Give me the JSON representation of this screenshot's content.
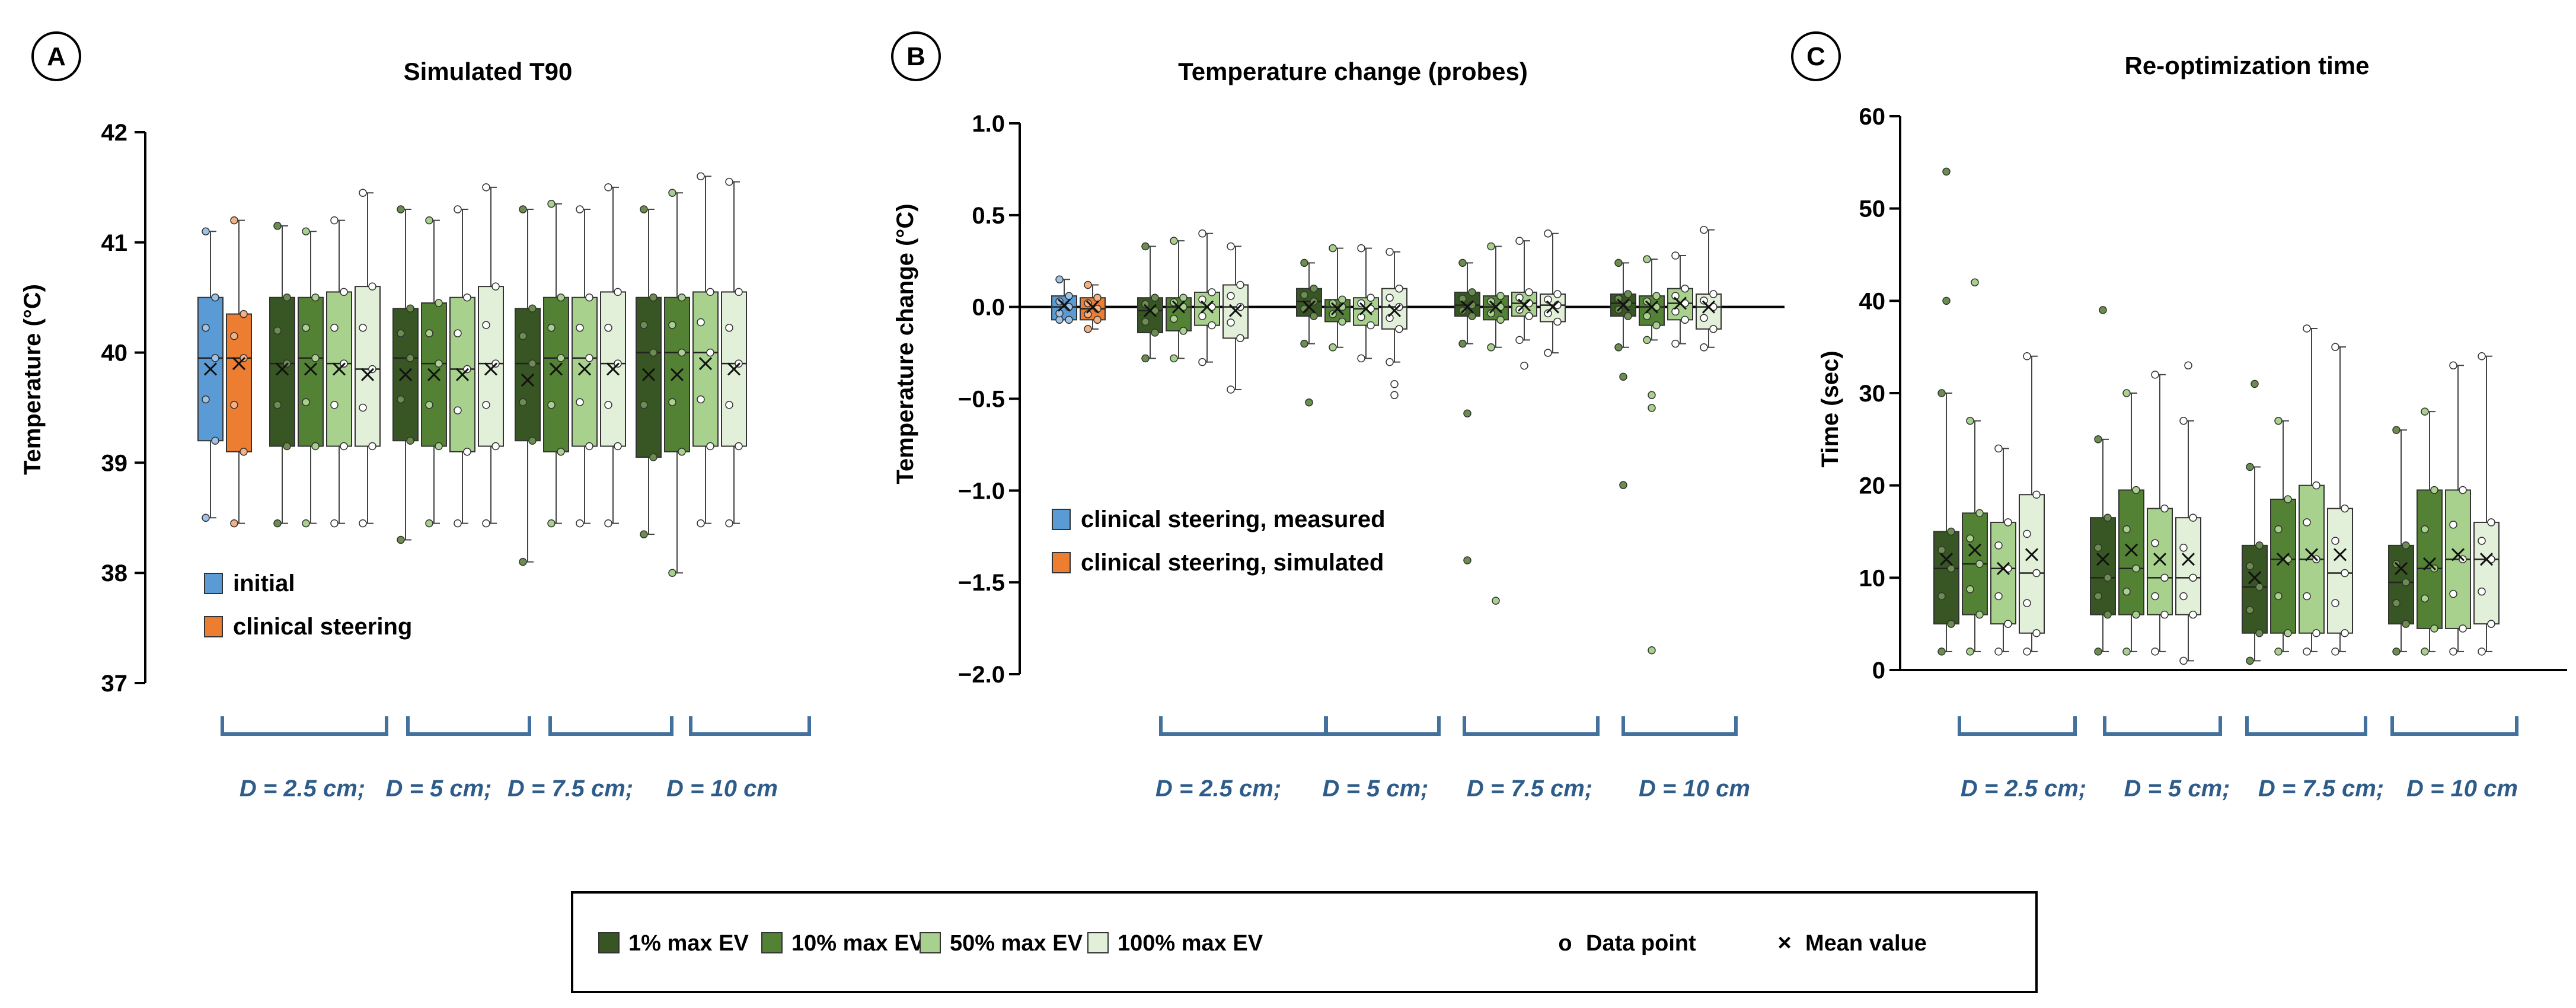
{
  "colors": {
    "initial": "#5b9bd5",
    "clinical": "#ed7d31",
    "ev1": "#375623",
    "ev10": "#548235",
    "ev50": "#a9d18e",
    "ev100": "#e2f0d9",
    "group_label": "#2e5c8a",
    "bracket": "#41719c",
    "axis": "#000000"
  },
  "group_labels": [
    "D = 2.5 cm;",
    "D = 5 cm;",
    "D = 7.5 cm;",
    "D = 10 cm"
  ],
  "legend": {
    "items": [
      "1% max EV",
      "10% max EV",
      "50% max EV",
      "100% max EV"
    ],
    "data_point": "Data point",
    "mean_value": "Mean value",
    "point_glyph": "o",
    "mean_glyph": "×"
  },
  "chart_data": [
    {
      "panel": "A",
      "type": "box",
      "title": "Simulated T90",
      "ylabel": "Temperature (°C)",
      "ylim": [
        37,
        42
      ],
      "yticks": [
        37,
        38,
        39,
        40,
        41,
        42
      ],
      "ytick_labels": [
        "37",
        "38",
        "39",
        "40",
        "41",
        "42"
      ],
      "zero_line": false,
      "legend_labels": [
        "initial",
        "clinical steering"
      ],
      "boxes": [
        {
          "series": "initial",
          "min": 38.5,
          "q1": 39.2,
          "median": 39.95,
          "q3": 40.5,
          "max": 41.1,
          "mean": 39.85,
          "outliers": []
        },
        {
          "series": "clinical steering",
          "min": 38.45,
          "q1": 39.1,
          "median": 39.95,
          "q3": 40.35,
          "max": 41.2,
          "mean": 39.9,
          "outliers": []
        },
        {
          "series": "1% max EV",
          "group": "D = 2.5 cm",
          "min": 38.45,
          "q1": 39.15,
          "median": 39.9,
          "q3": 40.5,
          "max": 41.15,
          "mean": 39.85,
          "outliers": []
        },
        {
          "series": "10% max EV",
          "group": "D = 2.5 cm",
          "min": 38.45,
          "q1": 39.15,
          "median": 39.95,
          "q3": 40.5,
          "max": 41.1,
          "mean": 39.85,
          "outliers": []
        },
        {
          "series": "50% max EV",
          "group": "D = 2.5 cm",
          "min": 38.45,
          "q1": 39.15,
          "median": 39.9,
          "q3": 40.55,
          "max": 41.2,
          "mean": 39.85,
          "outliers": []
        },
        {
          "series": "100% max EV",
          "group": "D = 2.5 cm",
          "min": 38.45,
          "q1": 39.15,
          "median": 39.85,
          "q3": 40.6,
          "max": 41.45,
          "mean": 39.8,
          "outliers": []
        },
        {
          "series": "1% max EV",
          "group": "D = 5 cm",
          "min": 38.3,
          "q1": 39.2,
          "median": 39.95,
          "q3": 40.4,
          "max": 41.3,
          "mean": 39.8,
          "outliers": []
        },
        {
          "series": "10% max EV",
          "group": "D = 5 cm",
          "min": 38.45,
          "q1": 39.15,
          "median": 39.9,
          "q3": 40.45,
          "max": 41.2,
          "mean": 39.8,
          "outliers": []
        },
        {
          "series": "50% max EV",
          "group": "D = 5 cm",
          "min": 38.45,
          "q1": 39.1,
          "median": 39.85,
          "q3": 40.5,
          "max": 41.3,
          "mean": 39.8,
          "outliers": []
        },
        {
          "series": "100% max EV",
          "group": "D = 5 cm",
          "min": 38.45,
          "q1": 39.15,
          "median": 39.9,
          "q3": 40.6,
          "max": 41.5,
          "mean": 39.85,
          "outliers": []
        },
        {
          "series": "1% max EV",
          "group": "D = 7.5 cm",
          "min": 38.1,
          "q1": 39.2,
          "median": 39.9,
          "q3": 40.4,
          "max": 41.3,
          "mean": 39.75,
          "outliers": []
        },
        {
          "series": "10% max EV",
          "group": "D = 7.5 cm",
          "min": 38.45,
          "q1": 39.1,
          "median": 39.95,
          "q3": 40.5,
          "max": 41.35,
          "mean": 39.85,
          "outliers": []
        },
        {
          "series": "50% max EV",
          "group": "D = 7.5 cm",
          "min": 38.45,
          "q1": 39.15,
          "median": 39.95,
          "q3": 40.5,
          "max": 41.3,
          "mean": 39.85,
          "outliers": []
        },
        {
          "series": "100% max EV",
          "group": "D = 7.5 cm",
          "min": 38.45,
          "q1": 39.15,
          "median": 39.9,
          "q3": 40.55,
          "max": 41.5,
          "mean": 39.85,
          "outliers": []
        },
        {
          "series": "1% max EV",
          "group": "D = 10 cm",
          "min": 38.35,
          "q1": 39.05,
          "median": 40.0,
          "q3": 40.5,
          "max": 41.3,
          "mean": 39.8,
          "outliers": []
        },
        {
          "series": "10% max EV",
          "group": "D = 10 cm",
          "min": 38.0,
          "q1": 39.1,
          "median": 40.0,
          "q3": 40.5,
          "max": 41.45,
          "mean": 39.8,
          "outliers": []
        },
        {
          "series": "50% max EV",
          "group": "D = 10 cm",
          "min": 38.45,
          "q1": 39.15,
          "median": 40.0,
          "q3": 40.55,
          "max": 41.6,
          "mean": 39.9,
          "outliers": []
        },
        {
          "series": "100% max EV",
          "group": "D = 10 cm",
          "min": 38.45,
          "q1": 39.15,
          "median": 39.9,
          "q3": 40.55,
          "max": 41.55,
          "mean": 39.85,
          "outliers": []
        }
      ]
    },
    {
      "panel": "B",
      "type": "box",
      "title": "Temperature change (probes)",
      "ylabel": "Temperature change (°C)",
      "ylim": [
        -2.0,
        1.0
      ],
      "yticks": [
        1.0,
        0.5,
        0.0,
        -0.5,
        -1.0,
        -1.5,
        -2.0
      ],
      "ytick_labels": [
        "1.0",
        "0.5",
        "0.0",
        "−0.5",
        "−1.0",
        "−1.5",
        "−2.0"
      ],
      "zero_line": true,
      "legend_labels": [
        "clinical steering, measured",
        "clinical steering, simulated"
      ],
      "boxes": [
        {
          "series": "clinical steering, measured",
          "min": -0.07,
          "q1": -0.07,
          "median": 0.0,
          "q3": 0.06,
          "max": 0.15,
          "mean": 0.01,
          "outliers": []
        },
        {
          "series": "clinical steering, simulated",
          "min": -0.12,
          "q1": -0.07,
          "median": -0.01,
          "q3": 0.05,
          "max": 0.12,
          "mean": 0.0,
          "outliers": []
        },
        {
          "series": "1% max EV",
          "group": "D = 2.5 cm",
          "min": -0.28,
          "q1": -0.14,
          "median": -0.02,
          "q3": 0.05,
          "max": 0.33,
          "mean": -0.02,
          "outliers": []
        },
        {
          "series": "10% max EV",
          "group": "D = 2.5 cm",
          "min": -0.28,
          "q1": -0.13,
          "median": 0.0,
          "q3": 0.05,
          "max": 0.36,
          "mean": 0.0,
          "outliers": []
        },
        {
          "series": "50% max EV",
          "group": "D = 2.5 cm",
          "min": -0.3,
          "q1": -0.1,
          "median": 0.0,
          "q3": 0.08,
          "max": 0.4,
          "mean": 0.0,
          "outliers": []
        },
        {
          "series": "100% max EV",
          "group": "D = 2.5 cm",
          "min": -0.45,
          "q1": -0.17,
          "median": 0.0,
          "q3": 0.12,
          "max": 0.33,
          "mean": -0.02,
          "outliers": []
        },
        {
          "series": "1% max EV",
          "group": "D = 5 cm",
          "min": -0.2,
          "q1": -0.05,
          "median": 0.03,
          "q3": 0.1,
          "max": 0.24,
          "mean": 0.0,
          "outliers": [
            -0.52
          ]
        },
        {
          "series": "10% max EV",
          "group": "D = 5 cm",
          "min": -0.22,
          "q1": -0.08,
          "median": 0.0,
          "q3": 0.04,
          "max": 0.32,
          "mean": -0.01,
          "outliers": []
        },
        {
          "series": "50% max EV",
          "group": "D = 5 cm",
          "min": -0.28,
          "q1": -0.1,
          "median": -0.01,
          "q3": 0.05,
          "max": 0.32,
          "mean": -0.01,
          "outliers": []
        },
        {
          "series": "100% max EV",
          "group": "D = 5 cm",
          "min": -0.3,
          "q1": -0.12,
          "median": 0.0,
          "q3": 0.1,
          "max": 0.3,
          "mean": -0.02,
          "outliers": [
            -0.42,
            -0.48
          ]
        },
        {
          "series": "1% max EV",
          "group": "D = 7.5 cm",
          "min": -0.2,
          "q1": -0.05,
          "median": 0.01,
          "q3": 0.08,
          "max": 0.24,
          "mean": 0.0,
          "outliers": [
            -0.58,
            -1.38
          ]
        },
        {
          "series": "10% max EV",
          "group": "D = 7.5 cm",
          "min": -0.22,
          "q1": -0.07,
          "median": 0.0,
          "q3": 0.06,
          "max": 0.33,
          "mean": 0.0,
          "outliers": [
            -1.6
          ]
        },
        {
          "series": "50% max EV",
          "group": "D = 7.5 cm",
          "min": -0.18,
          "q1": -0.05,
          "median": 0.02,
          "q3": 0.08,
          "max": 0.36,
          "mean": 0.01,
          "outliers": [
            -0.32
          ]
        },
        {
          "series": "100% max EV",
          "group": "D = 7.5 cm",
          "min": -0.25,
          "q1": -0.08,
          "median": 0.01,
          "q3": 0.07,
          "max": 0.4,
          "mean": 0.0,
          "outliers": []
        },
        {
          "series": "1% max EV",
          "group": "D = 10 cm",
          "min": -0.22,
          "q1": -0.05,
          "median": 0.02,
          "q3": 0.07,
          "max": 0.24,
          "mean": 0.01,
          "outliers": [
            -0.38,
            -0.97
          ]
        },
        {
          "series": "10% max EV",
          "group": "D = 10 cm",
          "min": -0.18,
          "q1": -0.1,
          "median": 0.0,
          "q3": 0.06,
          "max": 0.26,
          "mean": 0.0,
          "outliers": [
            -0.48,
            -0.55,
            -1.87
          ]
        },
        {
          "series": "50% max EV",
          "group": "D = 10 cm",
          "min": -0.2,
          "q1": -0.07,
          "median": 0.02,
          "q3": 0.1,
          "max": 0.28,
          "mean": 0.02,
          "outliers": []
        },
        {
          "series": "100% max EV",
          "group": "D = 10 cm",
          "min": -0.22,
          "q1": -0.12,
          "median": 0.0,
          "q3": 0.07,
          "max": 0.42,
          "mean": 0.0,
          "outliers": []
        }
      ]
    },
    {
      "panel": "C",
      "type": "box",
      "title": "Re-optimization time",
      "ylabel": "Time (sec)",
      "ylim": [
        0,
        60
      ],
      "yticks": [
        0,
        10,
        20,
        30,
        40,
        50,
        60
      ],
      "ytick_labels": [
        "0",
        "10",
        "20",
        "30",
        "40",
        "50",
        "60"
      ],
      "zero_line": false,
      "legend_labels": [],
      "boxes": [
        {
          "series": "1% max EV",
          "group": "D = 2.5 cm",
          "min": 2,
          "q1": 5,
          "median": 11,
          "q3": 15,
          "max": 30,
          "mean": 12,
          "outliers": [
            40,
            54
          ]
        },
        {
          "series": "10% max EV",
          "group": "D = 2.5 cm",
          "min": 2,
          "q1": 6,
          "median": 11.5,
          "q3": 17,
          "max": 27,
          "mean": 13,
          "outliers": [
            42
          ]
        },
        {
          "series": "50% max EV",
          "group": "D = 2.5 cm",
          "min": 2,
          "q1": 5,
          "median": 11,
          "q3": 16,
          "max": 24,
          "mean": 11,
          "outliers": []
        },
        {
          "series": "100% max EV",
          "group": "D = 2.5 cm",
          "min": 2,
          "q1": 4,
          "median": 10.5,
          "q3": 19,
          "max": 34,
          "mean": 12.5,
          "outliers": []
        },
        {
          "series": "1% max EV",
          "group": "D = 5 cm",
          "min": 2,
          "q1": 6,
          "median": 10,
          "q3": 16.5,
          "max": 25,
          "mean": 12,
          "outliers": [
            39
          ]
        },
        {
          "series": "10% max EV",
          "group": "D = 5 cm",
          "min": 2,
          "q1": 6,
          "median": 11,
          "q3": 19.5,
          "max": 30,
          "mean": 13,
          "outliers": []
        },
        {
          "series": "50% max EV",
          "group": "D = 5 cm",
          "min": 2,
          "q1": 6,
          "median": 10,
          "q3": 17.5,
          "max": 32,
          "mean": 12,
          "outliers": []
        },
        {
          "series": "100% max EV",
          "group": "D = 5 cm",
          "min": 1,
          "q1": 6,
          "median": 10,
          "q3": 16.5,
          "max": 27,
          "mean": 12,
          "outliers": [
            33
          ]
        },
        {
          "series": "1% max EV",
          "group": "D = 7.5 cm",
          "min": 1,
          "q1": 4,
          "median": 9,
          "q3": 13.5,
          "max": 22,
          "mean": 10,
          "outliers": [
            31
          ]
        },
        {
          "series": "10% max EV",
          "group": "D = 7.5 cm",
          "min": 2,
          "q1": 4,
          "median": 12,
          "q3": 18.5,
          "max": 27,
          "mean": 12,
          "outliers": []
        },
        {
          "series": "50% max EV",
          "group": "D = 7.5 cm",
          "min": 2,
          "q1": 4,
          "median": 12,
          "q3": 20,
          "max": 37,
          "mean": 12.5,
          "outliers": []
        },
        {
          "series": "100% max EV",
          "group": "D = 7.5 cm",
          "min": 2,
          "q1": 4,
          "median": 10.5,
          "q3": 17.5,
          "max": 35,
          "mean": 12.5,
          "outliers": []
        },
        {
          "series": "1% max EV",
          "group": "D = 10 cm",
          "min": 2,
          "q1": 5,
          "median": 9.5,
          "q3": 13.5,
          "max": 26,
          "mean": 11,
          "outliers": []
        },
        {
          "series": "10% max EV",
          "group": "D = 10 cm",
          "min": 2,
          "q1": 4.5,
          "median": 11,
          "q3": 19.5,
          "max": 28,
          "mean": 11.5,
          "outliers": []
        },
        {
          "series": "50% max EV",
          "group": "D = 10 cm",
          "min": 2,
          "q1": 4.5,
          "median": 12,
          "q3": 19.5,
          "max": 33,
          "mean": 12.5,
          "outliers": []
        },
        {
          "series": "100% max EV",
          "group": "D = 10 cm",
          "min": 2,
          "q1": 5,
          "median": 12,
          "q3": 16,
          "max": 34,
          "mean": 12,
          "outliers": []
        }
      ]
    }
  ]
}
